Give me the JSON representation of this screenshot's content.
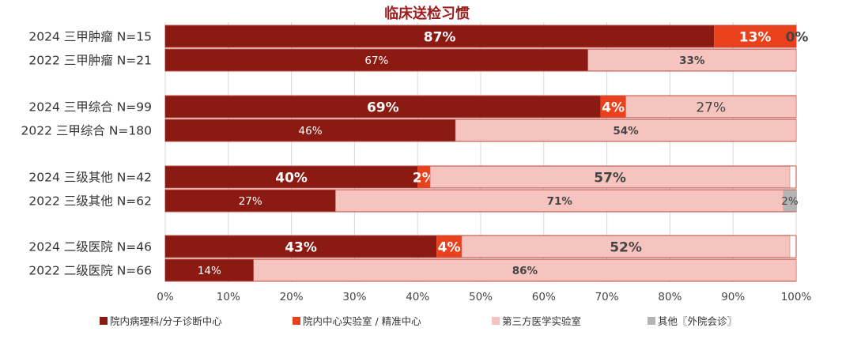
{
  "chart_data": {
    "type": "bar",
    "orientation": "horizontal",
    "stacked": true,
    "title": "临床送检习惯",
    "categories": [
      "2024 三甲肿瘤 N=15",
      "2022 三甲肿瘤 N=21",
      "2024 三甲综合 N=99",
      "2022 三甲综合 N=180",
      "2024 三级其他 N=42",
      "2022 三级其他 N=62",
      "2024 二级医院 N=46",
      "2022 二级医院 N=66"
    ],
    "series": [
      {
        "name": "院内病理科/分子诊断中心",
        "color": "#8b1a12",
        "values": [
          87,
          67,
          69,
          46,
          40,
          27,
          43,
          14
        ],
        "labels": [
          "87%",
          "67%",
          "69%",
          "46%",
          "40%",
          "27%",
          "43%",
          "14%"
        ]
      },
      {
        "name": "院内中心实验室 / 精准中心",
        "color": "#e8411c",
        "values": [
          13,
          0,
          4,
          0,
          2,
          0,
          4,
          0
        ],
        "labels": [
          "13%",
          "",
          "4%",
          "",
          "2%",
          "",
          "4%",
          ""
        ]
      },
      {
        "name": "第三方医学实验室",
        "color": "#f5c4bf",
        "values": [
          0,
          33,
          27,
          54,
          57,
          71,
          52,
          86
        ],
        "labels": [
          "",
          "33%",
          "27%",
          "54%",
          "57%",
          "71%",
          "52%",
          "86%"
        ]
      },
      {
        "name": "其他〖外院会诊〗",
        "color": "#b4b4b4",
        "values": [
          0,
          0,
          0,
          0,
          0,
          2,
          0,
          0
        ],
        "labels": [
          "0%",
          "",
          "",
          "",
          "",
          "2%",
          "",
          ""
        ]
      }
    ],
    "xlim": [
      0,
      100
    ],
    "x_ticks": [
      "0%",
      "10%",
      "20%",
      "30%",
      "40%",
      "50%",
      "60%",
      "70%",
      "80%",
      "90%",
      "100%"
    ],
    "grid": "vertical",
    "legend": "bottom"
  }
}
